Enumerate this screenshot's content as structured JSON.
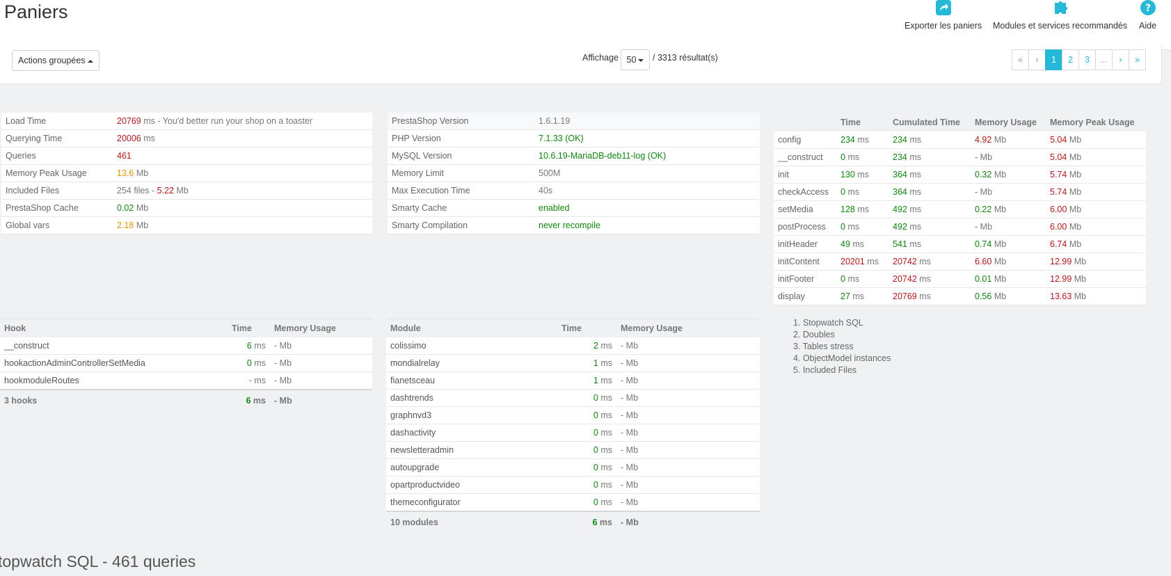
{
  "header": {
    "title": "Paniers",
    "toolbar": [
      {
        "label": "Exporter les paniers",
        "icon": "export-icon"
      },
      {
        "label": "Modules et services recommandés",
        "icon": "puzzle-icon"
      },
      {
        "label": "Aide",
        "icon": "help-icon"
      }
    ]
  },
  "list_panel": {
    "bulk_actions_label": "Actions groupées",
    "display_label": "Affichage",
    "per_page": "50",
    "results": "/ 3313 résultat(s)",
    "pagination": [
      "«",
      "‹",
      "1",
      "2",
      "3",
      "...",
      "›",
      "»"
    ],
    "current_page": "1"
  },
  "perf": {
    "load_time": {
      "label": "Load Time",
      "value": "20769",
      "unit": "ms",
      "note": " - You'd better run your shop on a toaster"
    },
    "querying_time": {
      "label": "Querying Time",
      "value": "20006",
      "unit": "ms"
    },
    "queries": {
      "label": "Queries",
      "value": "461"
    },
    "memory_peak": {
      "label": "Memory Peak Usage",
      "value": "13.6",
      "unit": "Mb"
    },
    "included_files": {
      "label": "Included Files",
      "files": "254 files - ",
      "value": "5.22",
      "unit": "Mb"
    },
    "prestashop_cache": {
      "label": "PrestaShop Cache",
      "value": "0.02",
      "unit": "Mb"
    },
    "global_vars": {
      "label": "Global vars",
      "value": "2.18",
      "unit": "Mb"
    }
  },
  "config": [
    {
      "label": "PrestaShop Version",
      "value": "1.6.1.19",
      "color": "#777777"
    },
    {
      "label": "PHP Version",
      "value": "7.1.33 (OK)",
      "color": "#108510"
    },
    {
      "label": "MySQL Version",
      "value": "10.6.19-MariaDB-deb11-log (OK)",
      "color": "#108510"
    },
    {
      "label": "Memory Limit",
      "value": "500M",
      "color": "#777777"
    },
    {
      "label": "Max Execution Time",
      "value": "40s",
      "color": "#777777"
    },
    {
      "label": "Smarty Cache",
      "value": "enabled",
      "color": "#108510"
    },
    {
      "label": "Smarty Compilation",
      "value": "never recompile",
      "color": "#108510"
    }
  ],
  "controller_profile": {
    "headers": [
      "",
      "Time",
      "Cumulated Time",
      "Memory Usage",
      "Memory Peak Usage"
    ],
    "rows": [
      {
        "step": "config",
        "time": "234",
        "cumul": "234",
        "mem": "4.92",
        "peak": "5.04",
        "tc": "gr",
        "cc": "gr",
        "mc": "rd",
        "pc": "rd"
      },
      {
        "step": "__construct",
        "time": "0",
        "cumul": "234",
        "mem": "-",
        "peak": "5.04",
        "tc": "gr",
        "cc": "gr",
        "mc": "",
        "pc": "rd"
      },
      {
        "step": "init",
        "time": "130",
        "cumul": "364",
        "mem": "0.32",
        "peak": "5.74",
        "tc": "gr",
        "cc": "gr",
        "mc": "gr",
        "pc": "rd"
      },
      {
        "step": "checkAccess",
        "time": "0",
        "cumul": "364",
        "mem": "-",
        "peak": "5.74",
        "tc": "gr",
        "cc": "gr",
        "mc": "",
        "pc": "rd"
      },
      {
        "step": "setMedia",
        "time": "128",
        "cumul": "492",
        "mem": "0.22",
        "peak": "6.00",
        "tc": "gr",
        "cc": "gr",
        "mc": "gr",
        "pc": "rd"
      },
      {
        "step": "postProcess",
        "time": "0",
        "cumul": "492",
        "mem": "-",
        "peak": "6.00",
        "tc": "gr",
        "cc": "gr",
        "mc": "",
        "pc": "rd"
      },
      {
        "step": "initHeader",
        "time": "49",
        "cumul": "541",
        "mem": "0.74",
        "peak": "6.74",
        "tc": "gr",
        "cc": "gr",
        "mc": "gr",
        "pc": "rd"
      },
      {
        "step": "initContent",
        "time": "20201",
        "cumul": "20742",
        "mem": "6.60",
        "peak": "12.99",
        "tc": "rd",
        "cc": "rd",
        "mc": "rd",
        "pc": "rd"
      },
      {
        "step": "initFooter",
        "time": "0",
        "cumul": "20742",
        "mem": "0.01",
        "peak": "12.99",
        "tc": "gr",
        "cc": "rd",
        "mc": "gr",
        "pc": "rd"
      },
      {
        "step": "display",
        "time": "27",
        "cumul": "20769",
        "mem": "0.56",
        "peak": "13.63",
        "tc": "gr",
        "cc": "rd",
        "mc": "gr",
        "pc": "rd"
      }
    ]
  },
  "hooks": {
    "headers": [
      "Hook",
      "Time",
      "Memory Usage"
    ],
    "rows": [
      {
        "name": "__construct",
        "time": "6",
        "mem": "-"
      },
      {
        "name": "hookactionAdminControllerSetMedia",
        "time": "0",
        "mem": "-"
      },
      {
        "name": "hookmoduleRoutes",
        "time": "-",
        "mem": "-"
      }
    ],
    "total": {
      "name": "3 hooks",
      "time": "6",
      "mem": "-"
    }
  },
  "modules": {
    "headers": [
      "Module",
      "Time",
      "Memory Usage"
    ],
    "rows": [
      {
        "name": "colissimo",
        "time": "2",
        "mem": "-"
      },
      {
        "name": "mondialrelay",
        "time": "1",
        "mem": "-"
      },
      {
        "name": "fianetsceau",
        "time": "1",
        "mem": "-"
      },
      {
        "name": "dashtrends",
        "time": "0",
        "mem": "-"
      },
      {
        "name": "graphnvd3",
        "time": "0",
        "mem": "-"
      },
      {
        "name": "dashactivity",
        "time": "0",
        "mem": "-"
      },
      {
        "name": "newsletteradmin",
        "time": "0",
        "mem": "-"
      },
      {
        "name": "autoupgrade",
        "time": "0",
        "mem": "-"
      },
      {
        "name": "opartproductvideo",
        "time": "0",
        "mem": "-"
      },
      {
        "name": "themeconfigurator",
        "time": "0",
        "mem": "-"
      }
    ],
    "total": {
      "name": "10 modules",
      "time": "6",
      "mem": "-"
    }
  },
  "sections": [
    "1. Stopwatch SQL",
    "2. Doubles",
    "3. Tables stress",
    "4. ObjectModel instances",
    "5. Included Files"
  ],
  "stopwatch_title": "topwatch SQL - 461 queries",
  "units": {
    "ms": "ms",
    "mb": "Mb"
  }
}
